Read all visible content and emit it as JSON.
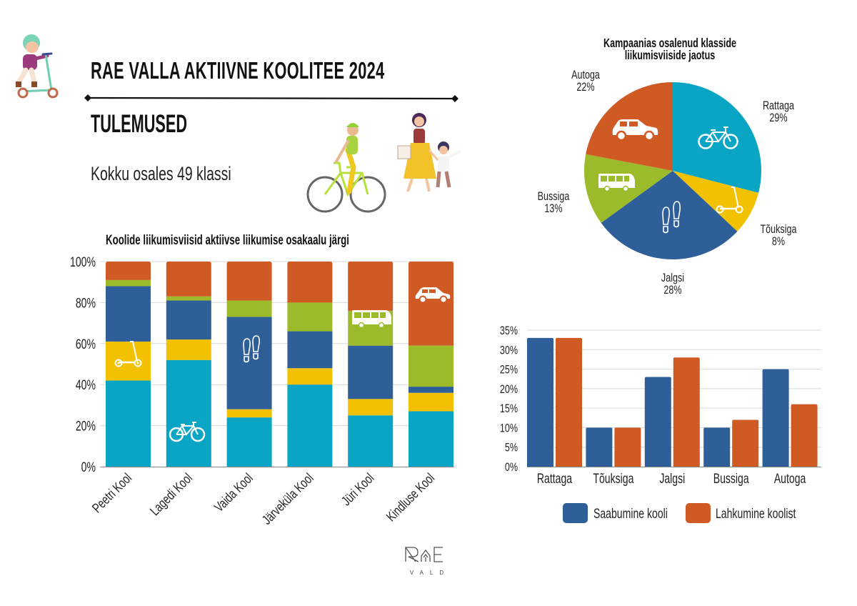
{
  "header": {
    "title": "RAE VALLA AKTIIVNE KOOLITEE 2024",
    "subtitle": "TULEMUSED",
    "summary": "Kokku osales 49 klassi"
  },
  "logo": {
    "text": "RAE",
    "subtext": "VALD"
  },
  "icons": {
    "bike": "bicycle-icon",
    "scooter": "kick-scooter-icon",
    "walk": "footprints-icon",
    "bus": "bus-icon",
    "car": "car-icon"
  },
  "colors": {
    "rattaga": "#0aa5c5",
    "touksiga": "#f2c202",
    "jalgsi": "#2f5f98",
    "bussiga": "#9bbb2b",
    "autoga": "#d05a24",
    "saabumine": "#2f5f98",
    "lahkumine": "#d05a24",
    "grid": "#d9d9d9"
  },
  "chart_data": [
    {
      "type": "bar",
      "stacked": true,
      "title": "Koolide liikumisviisid aktiivse liikumise osakaalu järgi",
      "xlabel": "",
      "ylabel": "",
      "categories": [
        "Peetri Kool",
        "Lagedi Kool",
        "Vaida Kool",
        "Järveküla Kool",
        "Jüri Kool",
        "Kindluse Kool"
      ],
      "series": [
        {
          "name": "Rattaga",
          "values": [
            42,
            52,
            24,
            40,
            25,
            27
          ]
        },
        {
          "name": "Tõuksiga",
          "values": [
            19,
            10,
            4,
            8,
            8,
            9
          ]
        },
        {
          "name": "Jalgsi",
          "values": [
            27,
            19,
            45,
            18,
            26,
            3
          ]
        },
        {
          "name": "Bussiga",
          "values": [
            3,
            2,
            8,
            14,
            17,
            20
          ]
        },
        {
          "name": "Autoga",
          "values": [
            9,
            17,
            19,
            20,
            24,
            41
          ]
        }
      ],
      "ylim": [
        0,
        100
      ],
      "yticks": [
        "0%",
        "20%",
        "40%",
        "60%",
        "80%",
        "100%"
      ],
      "grid": true,
      "legend": "none"
    },
    {
      "type": "pie",
      "title_lines": [
        "Kampaanias osalenud klasside",
        "liikumisviiside jaotus"
      ],
      "slices": [
        {
          "label": "Rattaga",
          "value": 29,
          "value_label": "29%"
        },
        {
          "label": "Tõuksiga",
          "value": 8,
          "value_label": "8%"
        },
        {
          "label": "Jalgsi",
          "value": 28,
          "value_label": "28%"
        },
        {
          "label": "Bussiga",
          "value": 13,
          "value_label": "13%"
        },
        {
          "label": "Autoga",
          "value": 22,
          "value_label": "22%"
        }
      ]
    },
    {
      "type": "bar",
      "title": "",
      "xlabel": "",
      "ylabel": "",
      "categories": [
        "Rattaga",
        "Tõuksiga",
        "Jalgsi",
        "Bussiga",
        "Autoga"
      ],
      "series": [
        {
          "name": "Saabumine kooli",
          "values": [
            33,
            10,
            23,
            10,
            25
          ]
        },
        {
          "name": "Lahkumine koolist",
          "values": [
            33,
            10,
            28,
            12,
            16
          ]
        }
      ],
      "ylim": [
        0,
        35
      ],
      "yticks": [
        "0%",
        "5%",
        "10%",
        "15%",
        "20%",
        "25%",
        "30%",
        "35%"
      ],
      "grid": true,
      "legend": "bottom"
    }
  ]
}
